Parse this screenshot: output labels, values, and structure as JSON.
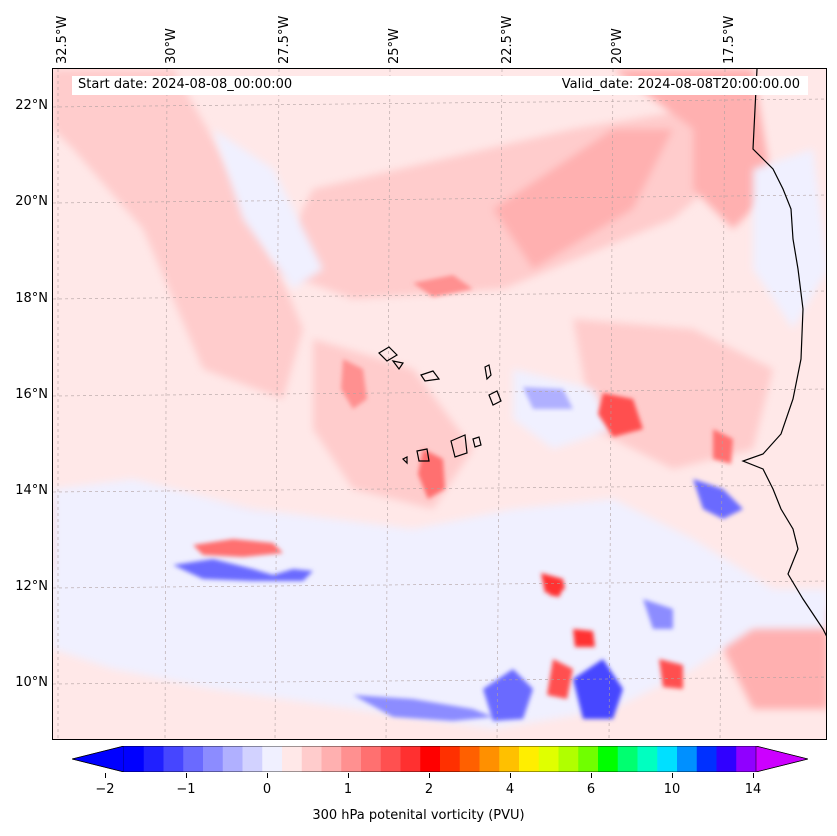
{
  "info": {
    "start_date": "Start date: 2024-08-08_00:00:00",
    "valid_date": "Valid_date: 2024-08-08T20:00:00.00"
  },
  "longitude_labels": [
    "32.5°W",
    "30°W",
    "27.5°W",
    "25°W",
    "22.5°W",
    "20°W",
    "17.5°W"
  ],
  "latitude_labels": [
    "22°N",
    "20°N",
    "18°N",
    "16°N",
    "14°N",
    "12°N",
    "10°N"
  ],
  "colorbar": {
    "label": "300 hPa potenital vorticity (PVU)",
    "tick_labels": [
      "−2",
      "−1",
      "0",
      "1",
      "2",
      "4",
      "6",
      "10",
      "14"
    ],
    "colors": [
      "#0000ff",
      "#2020ff",
      "#4646ff",
      "#6a6aff",
      "#8c8cff",
      "#b0b0ff",
      "#d2d2ff",
      "#f0f0ff",
      "#ffe8e8",
      "#ffcccc",
      "#ffb0b0",
      "#ff9090",
      "#ff7070",
      "#ff5050",
      "#ff3030",
      "#ff0000",
      "#ff3000",
      "#ff6000",
      "#ff9000",
      "#ffc000",
      "#ffee00",
      "#e0ff00",
      "#b0ff00",
      "#70ff00",
      "#00ff00",
      "#00ff70",
      "#00ffc0",
      "#00e0ff",
      "#0090ff",
      "#0030ff",
      "#3000ff",
      "#9000ff"
    ],
    "min_color": "#0000ff",
    "max_color": "#cc00ff"
  }
}
